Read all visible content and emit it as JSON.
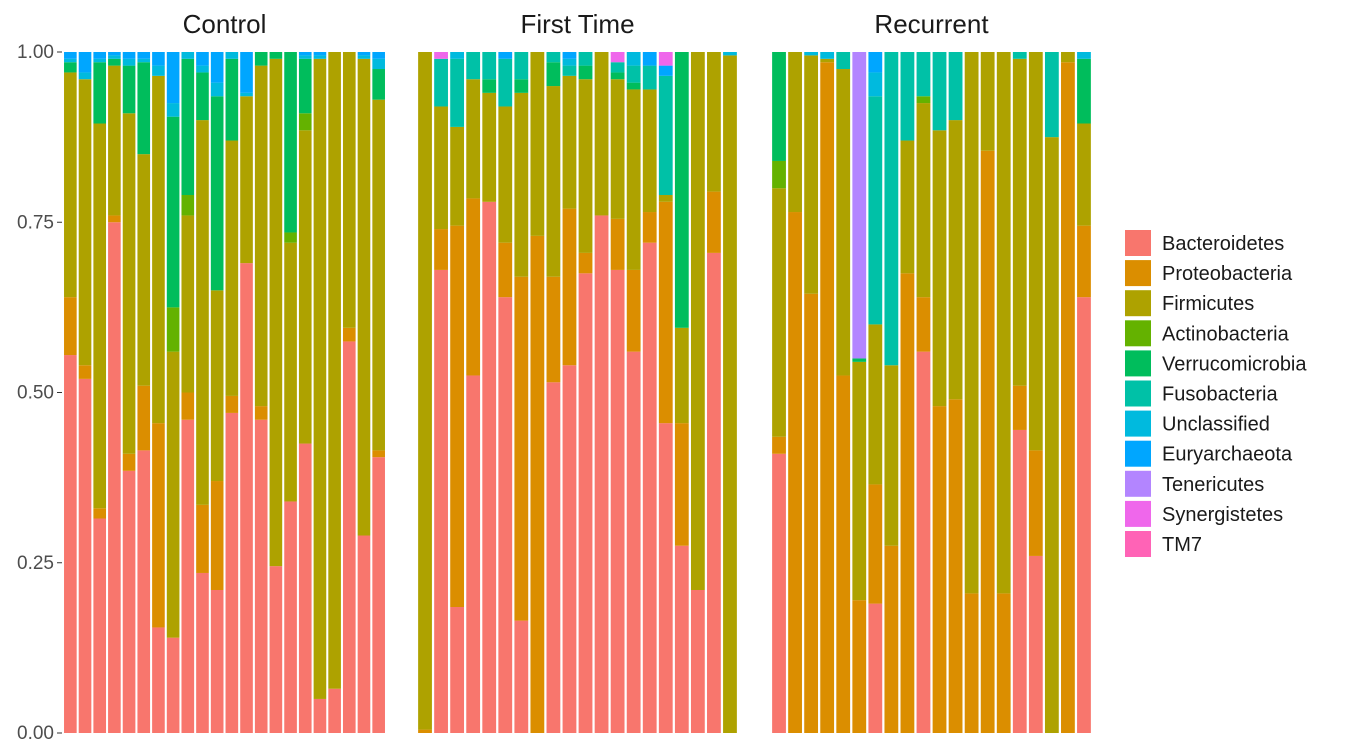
{
  "chart_data": {
    "type": "bar",
    "stacked": true,
    "ylim": [
      0,
      1
    ],
    "yticks": [
      "0.00",
      "0.25",
      "0.50",
      "0.75",
      "1.00"
    ],
    "grid": false,
    "legend_position": "right",
    "legend": [
      {
        "name": "Bacteroidetes",
        "color": "#F8766D"
      },
      {
        "name": "Proteobacteria",
        "color": "#DB8E00"
      },
      {
        "name": "Firmicutes",
        "color": "#AEA200"
      },
      {
        "name": "Actinobacteria",
        "color": "#64B200"
      },
      {
        "name": "Verrucomicrobia",
        "color": "#00BD5C"
      },
      {
        "name": "Fusobacteria",
        "color": "#00C1A7"
      },
      {
        "name": "Unclassified",
        "color": "#00BADE"
      },
      {
        "name": "Euryarchaeota",
        "color": "#00A6FF"
      },
      {
        "name": "Tenericutes",
        "color": "#B385FF"
      },
      {
        "name": "Synergistetes",
        "color": "#EF67EB"
      },
      {
        "name": "TM7",
        "color": "#FF63B6"
      }
    ],
    "panels": [
      {
        "title": "Control",
        "samples": [
          [
            0.555,
            0.085,
            0.33,
            0.0,
            0.015,
            0.0,
            0.005,
            0.01,
            0.0,
            0.0,
            0.0
          ],
          [
            0.52,
            0.02,
            0.42,
            0.0,
            0.0,
            0.0,
            0.01,
            0.03,
            0.0,
            0.0,
            0.0
          ],
          [
            0.315,
            0.015,
            0.565,
            0.0,
            0.09,
            0.0,
            0.005,
            0.01,
            0.0,
            0.0,
            0.0
          ],
          [
            0.75,
            0.01,
            0.22,
            0.0,
            0.01,
            0.0,
            0.005,
            0.005,
            0.0,
            0.0,
            0.0
          ],
          [
            0.385,
            0.025,
            0.5,
            0.0,
            0.07,
            0.0,
            0.01,
            0.01,
            0.0,
            0.0,
            0.0
          ],
          [
            0.415,
            0.095,
            0.34,
            0.0,
            0.135,
            0.0,
            0.005,
            0.01,
            0.0,
            0.0,
            0.0
          ],
          [
            0.155,
            0.3,
            0.51,
            0.0,
            0.0,
            0.0,
            0.015,
            0.02,
            0.0,
            0.0,
            0.0
          ],
          [
            0.14,
            0.0,
            0.42,
            0.065,
            0.28,
            0.0,
            0.02,
            0.075,
            0.0,
            0.0,
            0.0
          ],
          [
            0.46,
            0.04,
            0.26,
            0.03,
            0.2,
            0.0,
            0.01,
            0.0,
            0.0,
            0.0,
            0.0
          ],
          [
            0.235,
            0.1,
            0.565,
            0.0,
            0.07,
            0.0,
            0.01,
            0.02,
            0.0,
            0.0,
            0.0
          ],
          [
            0.21,
            0.16,
            0.28,
            0.0,
            0.285,
            0.0,
            0.02,
            0.045,
            0.0,
            0.0,
            0.0
          ],
          [
            0.47,
            0.025,
            0.375,
            0.0,
            0.12,
            0.0,
            0.01,
            0.0,
            0.0,
            0.0,
            0.0
          ],
          [
            0.69,
            0.0,
            0.245,
            0.0,
            0.0,
            0.0,
            0.005,
            0.06,
            0.0,
            0.0,
            0.0
          ],
          [
            0.46,
            0.02,
            0.5,
            0.0,
            0.02,
            0.0,
            0.0,
            0.0,
            0.0,
            0.0,
            0.0
          ],
          [
            0.245,
            0.0,
            0.745,
            0.0,
            0.01,
            0.0,
            0.0,
            0.0,
            0.0,
            0.0,
            0.0
          ],
          [
            0.34,
            0.0,
            0.38,
            0.015,
            0.265,
            0.0,
            0.0,
            0.0,
            0.0,
            0.0,
            0.0
          ],
          [
            0.425,
            0.0,
            0.46,
            0.025,
            0.08,
            0.0,
            0.005,
            0.005,
            0.0,
            0.0,
            0.0
          ],
          [
            0.05,
            0.0,
            0.94,
            0.0,
            0.0,
            0.0,
            0.005,
            0.005,
            0.0,
            0.0,
            0.0
          ],
          [
            0.065,
            0.0,
            0.935,
            0.0,
            0.0,
            0.0,
            0.0,
            0.0,
            0.0,
            0.0,
            0.0
          ],
          [
            0.575,
            0.02,
            0.405,
            0.0,
            0.0,
            0.0,
            0.0,
            0.0,
            0.0,
            0.0,
            0.0
          ],
          [
            0.29,
            0.0,
            0.7,
            0.0,
            0.0,
            0.0,
            0.005,
            0.005,
            0.0,
            0.0,
            0.0
          ],
          [
            0.405,
            0.01,
            0.515,
            0.0,
            0.045,
            0.0,
            0.015,
            0.01,
            0.0,
            0.0,
            0.0
          ]
        ]
      },
      {
        "title": "First Time",
        "samples": [
          [
            0.0,
            0.005,
            0.995,
            0.0,
            0.0,
            0.0,
            0.0,
            0.0,
            0.0,
            0.0,
            0.0
          ],
          [
            0.68,
            0.06,
            0.18,
            0.0,
            0.0,
            0.07,
            0.0,
            0.0,
            0.0,
            0.01,
            0.0
          ],
          [
            0.185,
            0.56,
            0.145,
            0.0,
            0.0,
            0.1,
            0.01,
            0.0,
            0.0,
            0.0,
            0.0
          ],
          [
            0.525,
            0.26,
            0.175,
            0.0,
            0.0,
            0.04,
            0.0,
            0.0,
            0.0,
            0.0,
            0.0
          ],
          [
            0.78,
            0.0,
            0.16,
            0.0,
            0.02,
            0.04,
            0.0,
            0.0,
            0.0,
            0.0,
            0.0
          ],
          [
            0.64,
            0.08,
            0.2,
            0.0,
            0.0,
            0.07,
            0.0,
            0.01,
            0.0,
            0.0,
            0.0
          ],
          [
            0.165,
            0.505,
            0.27,
            0.0,
            0.02,
            0.04,
            0.0,
            0.0,
            0.0,
            0.0,
            0.0
          ],
          [
            0.0,
            0.73,
            0.27,
            0.0,
            0.0,
            0.0,
            0.0,
            0.0,
            0.0,
            0.0,
            0.0
          ],
          [
            0.515,
            0.155,
            0.28,
            0.0,
            0.035,
            0.015,
            0.0,
            0.0,
            0.0,
            0.0,
            0.0
          ],
          [
            0.54,
            0.23,
            0.195,
            0.0,
            0.0,
            0.015,
            0.01,
            0.01,
            0.0,
            0.0,
            0.0
          ],
          [
            0.675,
            0.03,
            0.255,
            0.0,
            0.02,
            0.02,
            0.0,
            0.0,
            0.0,
            0.0,
            0.0
          ],
          [
            0.76,
            0.0,
            0.24,
            0.0,
            0.0,
            0.0,
            0.0,
            0.0,
            0.0,
            0.0,
            0.0
          ],
          [
            0.68,
            0.075,
            0.205,
            0.0,
            0.01,
            0.015,
            0.0,
            0.0,
            0.0,
            0.015,
            0.0
          ],
          [
            0.56,
            0.12,
            0.265,
            0.0,
            0.01,
            0.025,
            0.02,
            0.0,
            0.0,
            0.0,
            0.0
          ],
          [
            0.72,
            0.045,
            0.18,
            0.0,
            0.0,
            0.035,
            0.0,
            0.02,
            0.0,
            0.0,
            0.0
          ],
          [
            0.455,
            0.325,
            0.01,
            0.0,
            0.0,
            0.175,
            0.0,
            0.015,
            0.0,
            0.02,
            0.0
          ],
          [
            0.275,
            0.18,
            0.14,
            0.0,
            0.405,
            0.0,
            0.0,
            0.0,
            0.0,
            0.0,
            0.0
          ],
          [
            0.21,
            0.0,
            0.79,
            0.0,
            0.0,
            0.0,
            0.0,
            0.0,
            0.0,
            0.0,
            0.0
          ],
          [
            0.705,
            0.09,
            0.205,
            0.0,
            0.0,
            0.0,
            0.0,
            0.0,
            0.0,
            0.0,
            0.0
          ],
          [
            0.0,
            0.0,
            0.995,
            0.0,
            0.0,
            0.0,
            0.005,
            0.0,
            0.0,
            0.0,
            0.0
          ]
        ]
      },
      {
        "title": "Recurrent",
        "samples": [
          [
            0.41,
            0.025,
            0.365,
            0.04,
            0.16,
            0.0,
            0.0,
            0.0,
            0.0,
            0.0,
            0.0
          ],
          [
            0.0,
            0.765,
            0.235,
            0.0,
            0.0,
            0.0,
            0.0,
            0.0,
            0.0,
            0.0,
            0.0
          ],
          [
            0.0,
            0.645,
            0.35,
            0.0,
            0.0,
            0.0,
            0.005,
            0.0,
            0.0,
            0.0,
            0.0
          ],
          [
            0.0,
            0.985,
            0.005,
            0.0,
            0.0,
            0.0,
            0.01,
            0.0,
            0.0,
            0.0,
            0.0
          ],
          [
            0.0,
            0.525,
            0.45,
            0.0,
            0.0,
            0.025,
            0.0,
            0.0,
            0.0,
            0.0,
            0.0
          ],
          [
            0.0,
            0.195,
            0.35,
            0.0,
            0.005,
            0.0,
            0.0,
            0.0,
            0.45,
            0.0,
            0.0
          ],
          [
            0.19,
            0.175,
            0.235,
            0.0,
            0.0,
            0.335,
            0.035,
            0.03,
            0.0,
            0.0,
            0.0
          ],
          [
            0.0,
            0.275,
            0.265,
            0.0,
            0.0,
            0.46,
            0.0,
            0.0,
            0.0,
            0.0,
            0.0
          ],
          [
            0.0,
            0.675,
            0.195,
            0.0,
            0.0,
            0.13,
            0.0,
            0.0,
            0.0,
            0.0,
            0.0
          ],
          [
            0.56,
            0.08,
            0.285,
            0.01,
            0.0,
            0.065,
            0.0,
            0.0,
            0.0,
            0.0,
            0.0
          ],
          [
            0.0,
            0.48,
            0.405,
            0.0,
            0.0,
            0.115,
            0.0,
            0.0,
            0.0,
            0.0,
            0.0
          ],
          [
            0.0,
            0.49,
            0.41,
            0.0,
            0.0,
            0.1,
            0.0,
            0.0,
            0.0,
            0.0,
            0.0
          ],
          [
            0.0,
            0.205,
            0.795,
            0.0,
            0.0,
            0.0,
            0.0,
            0.0,
            0.0,
            0.0,
            0.0
          ],
          [
            0.0,
            0.855,
            0.145,
            0.0,
            0.0,
            0.0,
            0.0,
            0.0,
            0.0,
            0.0,
            0.0
          ],
          [
            0.0,
            0.205,
            0.795,
            0.0,
            0.0,
            0.0,
            0.0,
            0.0,
            0.0,
            0.0,
            0.0
          ],
          [
            0.445,
            0.065,
            0.48,
            0.0,
            0.0,
            0.01,
            0.0,
            0.0,
            0.0,
            0.0,
            0.0
          ],
          [
            0.26,
            0.155,
            0.585,
            0.0,
            0.0,
            0.0,
            0.0,
            0.0,
            0.0,
            0.0,
            0.0
          ],
          [
            0.0,
            0.0,
            0.875,
            0.0,
            0.0,
            0.125,
            0.0,
            0.0,
            0.0,
            0.0,
            0.0
          ],
          [
            0.0,
            0.985,
            0.015,
            0.0,
            0.0,
            0.0,
            0.0,
            0.0,
            0.0,
            0.0,
            0.0
          ],
          [
            0.64,
            0.105,
            0.15,
            0.0,
            0.095,
            0.0,
            0.01,
            0.0,
            0.0,
            0.0,
            0.0
          ]
        ]
      }
    ]
  }
}
